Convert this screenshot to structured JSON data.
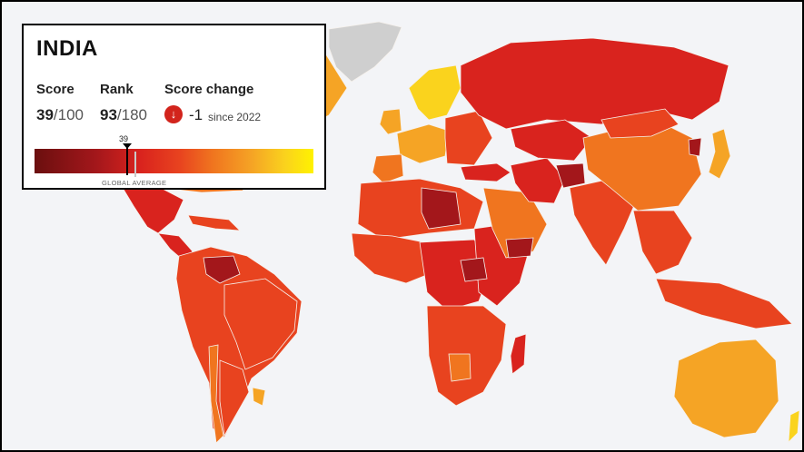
{
  "country": {
    "name": "INDIA",
    "score_label": "Score",
    "score_value": "39",
    "score_max": "/100",
    "rank_label": "Rank",
    "rank_value": "93",
    "rank_total": "/180",
    "change_label": "Score change",
    "change_value": "-1",
    "change_since": "since 2022",
    "change_icon": "arrow-down-icon"
  },
  "scale": {
    "marker_value": "39",
    "average_label": "GLOBAL AVERAGE",
    "colors": [
      "#6b0f0f",
      "#a3171b",
      "#d9231e",
      "#e8431f",
      "#f0751f",
      "#f5a425",
      "#fad31d",
      "#fff200"
    ]
  },
  "map": {
    "background": "#f3f4f7",
    "no_data_color": "#cfcfcf",
    "regions": [
      {
        "name": "greenland",
        "fill": "#cfcfcf"
      },
      {
        "name": "canada",
        "fill": "#f5a425"
      },
      {
        "name": "usa",
        "fill": "#f0751f"
      },
      {
        "name": "mexico",
        "fill": "#d9231e"
      },
      {
        "name": "central-america",
        "fill": "#d9231e"
      },
      {
        "name": "caribbean",
        "fill": "#e8431f"
      },
      {
        "name": "south-america",
        "fill": "#e8431f"
      },
      {
        "name": "venezuela",
        "fill": "#a3171b"
      },
      {
        "name": "brazil",
        "fill": "#e8431f"
      },
      {
        "name": "chile",
        "fill": "#f0751f"
      },
      {
        "name": "argentina",
        "fill": "#e8431f"
      },
      {
        "name": "uruguay",
        "fill": "#f5a425"
      },
      {
        "name": "scandinavia",
        "fill": "#fad31d"
      },
      {
        "name": "uk-ireland",
        "fill": "#f5a425"
      },
      {
        "name": "western-europe",
        "fill": "#f5a425"
      },
      {
        "name": "iberia",
        "fill": "#f0751f"
      },
      {
        "name": "eastern-europe",
        "fill": "#e8431f"
      },
      {
        "name": "russia",
        "fill": "#d9231e"
      },
      {
        "name": "turkey",
        "fill": "#d9231e"
      },
      {
        "name": "north-africa",
        "fill": "#e8431f"
      },
      {
        "name": "libya",
        "fill": "#a3171b"
      },
      {
        "name": "west-africa",
        "fill": "#e8431f"
      },
      {
        "name": "central-africa",
        "fill": "#d9231e"
      },
      {
        "name": "east-africa",
        "fill": "#d9231e"
      },
      {
        "name": "south-sudan",
        "fill": "#a3171b"
      },
      {
        "name": "southern-africa",
        "fill": "#e8431f"
      },
      {
        "name": "botswana",
        "fill": "#f0751f"
      },
      {
        "name": "madagascar",
        "fill": "#d9231e"
      },
      {
        "name": "arabia",
        "fill": "#f0751f"
      },
      {
        "name": "yemen",
        "fill": "#a3171b"
      },
      {
        "name": "iran",
        "fill": "#d9231e"
      },
      {
        "name": "central-asia",
        "fill": "#d9231e"
      },
      {
        "name": "afghanistan",
        "fill": "#a3171b"
      },
      {
        "name": "india",
        "fill": "#e8431f"
      },
      {
        "name": "china",
        "fill": "#f0751f"
      },
      {
        "name": "mongolia",
        "fill": "#e8431f"
      },
      {
        "name": "north-korea",
        "fill": "#a3171b"
      },
      {
        "name": "japan",
        "fill": "#f5a425"
      },
      {
        "name": "southeast-asia",
        "fill": "#e8431f"
      },
      {
        "name": "indonesia",
        "fill": "#e8431f"
      },
      {
        "name": "australia",
        "fill": "#f5a425"
      },
      {
        "name": "new-zealand",
        "fill": "#fad31d"
      }
    ]
  }
}
